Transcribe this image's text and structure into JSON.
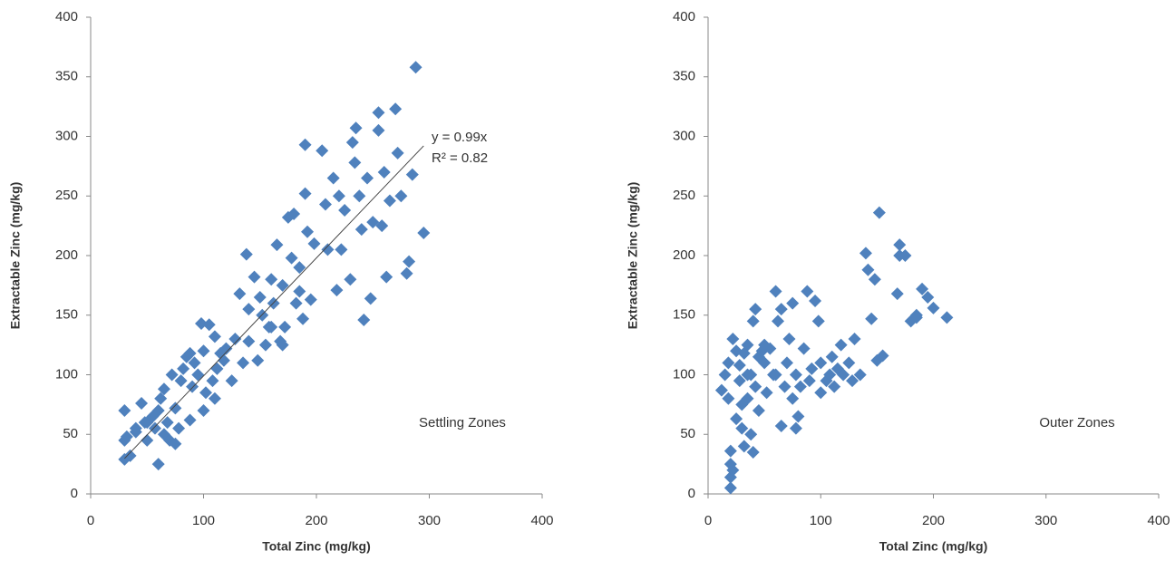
{
  "chart_data": [
    {
      "type": "scatter",
      "x_label": "Total Zinc (mg/kg)",
      "y_label": "Extractable Zinc (mg/kg)",
      "annotation": "Settling Zones",
      "color": "#4f81bd",
      "xlim": [
        0,
        400
      ],
      "xticks": [
        0,
        100,
        200,
        300,
        400
      ],
      "ylim": [
        0,
        400
      ],
      "yticks": [
        0,
        50,
        100,
        150,
        200,
        250,
        300,
        350,
        400
      ],
      "grid": false,
      "trendline": {
        "slope": 0.99,
        "x_range": [
          30,
          295
        ],
        "equation": "y = 0.99x",
        "r_squared": "R² = 0.82"
      },
      "x": [
        30,
        30,
        32,
        30,
        35,
        40,
        45,
        48,
        50,
        55,
        57,
        60,
        60,
        62,
        65,
        65,
        68,
        70,
        72,
        75,
        78,
        80,
        82,
        85,
        88,
        90,
        92,
        95,
        98,
        100,
        100,
        102,
        105,
        108,
        110,
        112,
        115,
        120,
        125,
        128,
        132,
        135,
        138,
        140,
        145,
        148,
        150,
        152,
        155,
        158,
        160,
        162,
        165,
        168,
        170,
        172,
        175,
        178,
        180,
        182,
        185,
        188,
        190,
        190,
        192,
        195,
        198,
        205,
        208,
        210,
        215,
        218,
        220,
        222,
        225,
        230,
        232,
        235,
        238,
        240,
        242,
        245,
        248,
        250,
        255,
        258,
        260,
        262,
        265,
        270,
        272,
        275,
        280,
        282,
        285,
        288,
        295,
        234,
        255,
        170,
        185,
        140,
        118,
        88,
        75,
        50,
        40,
        110,
        160
      ],
      "values": [
        70,
        45,
        48,
        29,
        32,
        52,
        76,
        60,
        45,
        65,
        55,
        25,
        70,
        80,
        50,
        88,
        60,
        45,
        100,
        42,
        55,
        95,
        105,
        115,
        62,
        90,
        110,
        100,
        143,
        70,
        120,
        85,
        142,
        95,
        80,
        105,
        118,
        122,
        95,
        130,
        168,
        110,
        201,
        128,
        182,
        112,
        165,
        150,
        125,
        140,
        180,
        160,
        209,
        128,
        175,
        140,
        232,
        198,
        235,
        160,
        190,
        147,
        293,
        252,
        220,
        163,
        210,
        288,
        243,
        205,
        265,
        171,
        250,
        205,
        238,
        180,
        295,
        307,
        250,
        222,
        146,
        265,
        164,
        228,
        320,
        225,
        270,
        182,
        246,
        323,
        286,
        250,
        185,
        195,
        268,
        358,
        219,
        278,
        305,
        125,
        170,
        155,
        112,
        118,
        72,
        60,
        55,
        132,
        140
      ]
    },
    {
      "type": "scatter",
      "x_label": "Total Zinc (mg/kg)",
      "y_label": "Extractable Zinc (mg/kg)",
      "annotation": "Outer Zones",
      "color": "#4f81bd",
      "xlim": [
        0,
        400
      ],
      "xticks": [
        0,
        100,
        200,
        300,
        400
      ],
      "ylim": [
        0,
        400
      ],
      "yticks": [
        0,
        50,
        100,
        150,
        200,
        250,
        300,
        350,
        400
      ],
      "grid": false,
      "x": [
        12,
        15,
        18,
        18,
        20,
        20,
        20,
        20,
        22,
        22,
        25,
        25,
        28,
        28,
        30,
        30,
        32,
        32,
        35,
        35,
        38,
        38,
        40,
        40,
        42,
        42,
        45,
        45,
        48,
        50,
        52,
        55,
        58,
        60,
        62,
        65,
        65,
        68,
        70,
        72,
        75,
        75,
        78,
        78,
        80,
        82,
        85,
        88,
        90,
        92,
        95,
        98,
        100,
        100,
        105,
        108,
        110,
        112,
        115,
        118,
        120,
        125,
        128,
        130,
        135,
        140,
        142,
        145,
        148,
        150,
        152,
        155,
        168,
        170,
        170,
        175,
        180,
        185,
        190,
        195,
        200,
        212,
        185,
        60,
        50,
        35
      ],
      "values": [
        87,
        100,
        80,
        110,
        5,
        14,
        25,
        36,
        20,
        130,
        120,
        63,
        95,
        108,
        55,
        75,
        40,
        118,
        125,
        80,
        50,
        100,
        35,
        145,
        155,
        90,
        115,
        70,
        120,
        110,
        85,
        122,
        100,
        170,
        145,
        57,
        155,
        90,
        110,
        130,
        160,
        80,
        55,
        100,
        65,
        90,
        122,
        170,
        95,
        105,
        162,
        145,
        85,
        110,
        95,
        100,
        115,
        90,
        105,
        125,
        100,
        110,
        95,
        130,
        100,
        202,
        188,
        147,
        180,
        112,
        236,
        116,
        168,
        209,
        200,
        200,
        145,
        150,
        172,
        165,
        156,
        148,
        148,
        100,
        125,
        100
      ]
    }
  ]
}
